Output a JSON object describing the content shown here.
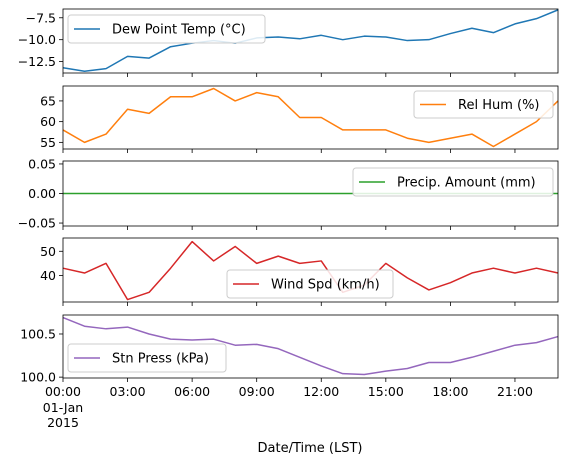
{
  "figure": {
    "xlabel": "Date/Time (LST)",
    "x_tick_labels": [
      "00:00",
      "03:00",
      "06:00",
      "09:00",
      "12:00",
      "15:00",
      "18:00",
      "21:00"
    ],
    "x_tick_sublabels": [
      "01-Jan",
      "2015"
    ]
  },
  "chart_data": [
    {
      "type": "line",
      "x_unit": "hour",
      "x": [
        0,
        1,
        2,
        3,
        4,
        5,
        6,
        7,
        8,
        9,
        10,
        11,
        12,
        13,
        14,
        15,
        16,
        17,
        18,
        19,
        20,
        21,
        22,
        23
      ],
      "xlim": [
        0,
        23
      ],
      "series": [
        {
          "name": "Dew Point Temp (°C)",
          "color": "#1f77b4",
          "values": [
            -13.2,
            -13.6,
            -13.3,
            -11.9,
            -12.1,
            -10.8,
            -10.4,
            -10.1,
            -10.4,
            -9.8,
            -9.7,
            -9.9,
            -9.5,
            -10.0,
            -9.6,
            -9.7,
            -10.1,
            -10.0,
            -9.3,
            -8.7,
            -9.2,
            -8.2,
            -7.6,
            -6.6
          ]
        }
      ],
      "ylim": [
        -13.8,
        -6.5
      ],
      "yticks": [
        -12.5,
        -10.0,
        -7.5
      ],
      "ytick_labels": [
        "−12.5",
        "−10.0",
        "−7.5"
      ],
      "legend_loc": "upper left"
    },
    {
      "type": "line",
      "x_unit": "hour",
      "x": [
        0,
        1,
        2,
        3,
        4,
        5,
        6,
        7,
        8,
        9,
        10,
        11,
        12,
        13,
        14,
        15,
        16,
        17,
        18,
        19,
        20,
        21,
        22,
        23
      ],
      "xlim": [
        0,
        23
      ],
      "series": [
        {
          "name": "Rel Hum (%)",
          "color": "#ff7f0e",
          "values": [
            58,
            55,
            57,
            63,
            62,
            66,
            66,
            68,
            65,
            67,
            66,
            61,
            61,
            58,
            58,
            58,
            56,
            55,
            56,
            57,
            54,
            57,
            60,
            65
          ]
        }
      ],
      "ylim": [
        53.4,
        68.6
      ],
      "yticks": [
        55,
        60,
        65
      ],
      "ytick_labels": [
        "55",
        "60",
        "65"
      ],
      "legend_loc": "upper right"
    },
    {
      "type": "line",
      "x_unit": "hour",
      "x": [
        0,
        1,
        2,
        3,
        4,
        5,
        6,
        7,
        8,
        9,
        10,
        11,
        12,
        13,
        14,
        15,
        16,
        17,
        18,
        19,
        20,
        21,
        22,
        23
      ],
      "xlim": [
        0,
        23
      ],
      "series": [
        {
          "name": "Precip. Amount (mm)",
          "color": "#2ca02c",
          "values": [
            0,
            0,
            0,
            0,
            0,
            0,
            0,
            0,
            0,
            0,
            0,
            0,
            0,
            0,
            0,
            0,
            0,
            0,
            0,
            0,
            0,
            0,
            0,
            0
          ]
        }
      ],
      "ylim": [
        -0.055,
        0.055
      ],
      "yticks": [
        -0.05,
        0.0,
        0.05
      ],
      "ytick_labels": [
        "−0.05",
        "0.00",
        "0.05"
      ],
      "legend_loc": "upper right"
    },
    {
      "type": "line",
      "x_unit": "hour",
      "x": [
        0,
        1,
        2,
        3,
        4,
        5,
        6,
        7,
        8,
        9,
        10,
        11,
        12,
        13,
        14,
        15,
        16,
        17,
        18,
        19,
        20,
        21,
        22,
        23
      ],
      "xlim": [
        0,
        23
      ],
      "series": [
        {
          "name": "Wind Spd (km/h)",
          "color": "#d62728",
          "values": [
            43,
            41,
            45,
            30,
            33,
            43,
            54,
            46,
            52,
            45,
            48,
            45,
            46,
            33,
            36,
            45,
            39,
            34,
            37,
            41,
            43,
            41,
            43,
            41
          ]
        }
      ],
      "ylim": [
        29,
        55.5
      ],
      "yticks": [
        40,
        50
      ],
      "ytick_labels": [
        "40",
        "50"
      ],
      "legend_loc": "lower center"
    },
    {
      "type": "line",
      "x_unit": "hour",
      "x": [
        0,
        1,
        2,
        3,
        4,
        5,
        6,
        7,
        8,
        9,
        10,
        11,
        12,
        13,
        14,
        15,
        16,
        17,
        18,
        19,
        20,
        21,
        22,
        23
      ],
      "xlim": [
        0,
        23
      ],
      "series": [
        {
          "name": "Stn Press (kPa)",
          "color": "#9467bd",
          "values": [
            100.69,
            100.59,
            100.56,
            100.58,
            100.5,
            100.44,
            100.43,
            100.44,
            100.37,
            100.38,
            100.33,
            100.23,
            100.13,
            100.04,
            100.03,
            100.07,
            100.1,
            100.17,
            100.17,
            100.23,
            100.3,
            100.37,
            100.4,
            100.47
          ]
        }
      ],
      "ylim": [
        99.99,
        100.72
      ],
      "yticks": [
        100.0,
        100.5
      ],
      "ytick_labels": [
        "100.0",
        "100.5"
      ],
      "legend_loc": "lower left"
    }
  ]
}
